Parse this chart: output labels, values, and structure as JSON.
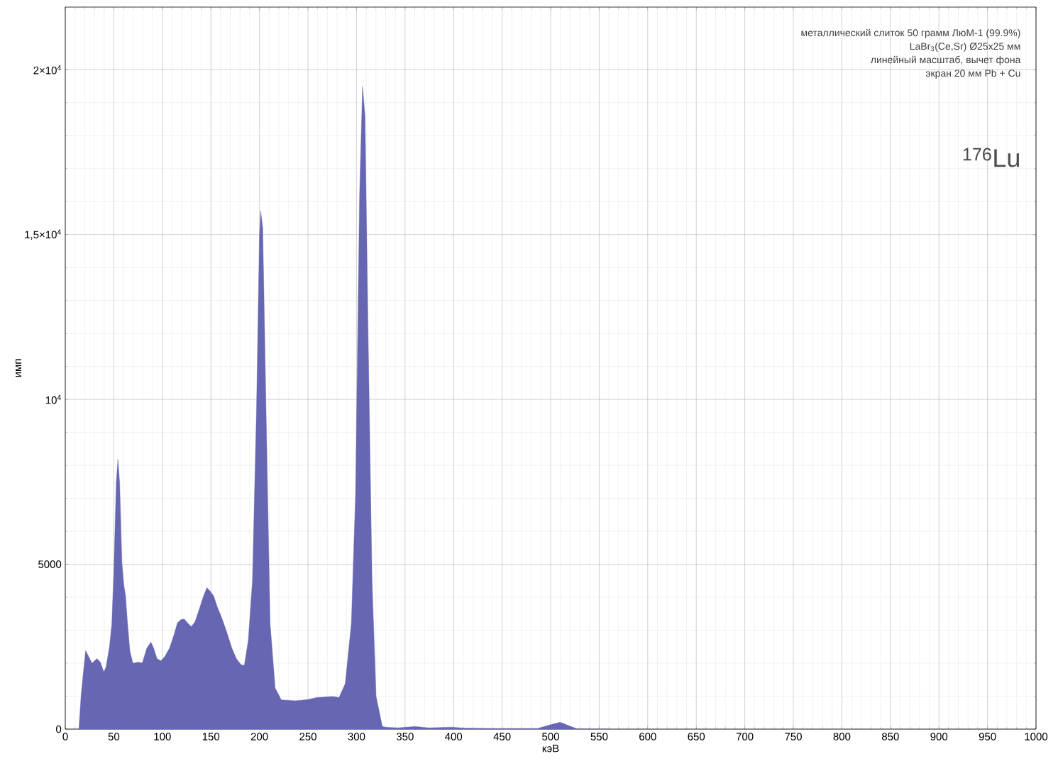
{
  "chart_data": {
    "type": "area",
    "xlabel": "кэВ",
    "ylabel": "имп",
    "xlim": [
      0,
      1000
    ],
    "ylim": [
      0,
      21900
    ],
    "xticks": [
      0,
      50,
      100,
      150,
      200,
      250,
      300,
      350,
      400,
      450,
      500,
      550,
      600,
      650,
      700,
      750,
      800,
      850,
      900,
      950,
      1000
    ],
    "yticks": [
      0,
      5000,
      {
        "value": 10000,
        "label": "10$^{4}$"
      },
      {
        "value": 15000,
        "label": "1,5×10$^{4}$"
      },
      {
        "value": 20000,
        "label": "2×10$^{4}$"
      }
    ],
    "grid": true,
    "marker": "none",
    "annotations": [
      "металлический слиток 50 грамм ЛюМ-1 (99.9%)",
      "LaBr$_{3}$(Ce,Sr) Ø25x25 мм",
      "линейный масштаб, вычет фона",
      "экран 20 мм Pb + Cu",
      "$^{176}$Lu"
    ],
    "series": [
      {
        "color": "#6666b3",
        "x": [
          14,
          16.3,
          18.7,
          21,
          23.3,
          27.5,
          32.7,
          36.2,
          39.7,
          42,
          45.5,
          47.9,
          50.2,
          52.5,
          54.2,
          56,
          58.4,
          60.2,
          62.1,
          64.2,
          66.5,
          69.6,
          74.7,
          79.4,
          84,
          88.2,
          91,
          94.5,
          98.5,
          102.7,
          107.4,
          112,
          115.5,
          119,
          122.5,
          126,
          129.8,
          133.5,
          137.7,
          142.4,
          145.9,
          149.4,
          152.9,
          156.4,
          161,
          165.7,
          171.6,
          176.2,
          180.9,
          184.4,
          188.5,
          192.8,
          197,
          200,
          201.3,
          203.4,
          206.8,
          211,
          216.2,
          222.5,
          237.4,
          250.1,
          258.7,
          275.6,
          282,
          288.4,
          294.7,
          299,
          303.2,
          306.2,
          308.8,
          311.8,
          316,
          320.2,
          326.6,
          330,
          342.2,
          360.4,
          374.4,
          397.8,
          411.8,
          439.8,
          486.5,
          500.5,
          509.8,
          519.1,
          527.3,
          560
        ],
        "values": [
          0,
          1030,
          1750,
          2380,
          2250,
          2000,
          2140,
          2030,
          1730,
          1890,
          2500,
          3180,
          4970,
          7480,
          8180,
          7480,
          5040,
          4400,
          4040,
          3180,
          2390,
          2000,
          2030,
          2010,
          2460,
          2640,
          2460,
          2140,
          2070,
          2210,
          2460,
          2860,
          3220,
          3320,
          3340,
          3220,
          3110,
          3250,
          3610,
          4040,
          4290,
          4180,
          4040,
          3720,
          3390,
          3000,
          2460,
          2140,
          1960,
          1930,
          2690,
          4510,
          9730,
          14940,
          15720,
          15200,
          9730,
          3210,
          1250,
          890,
          860,
          900,
          960,
          990,
          960,
          1380,
          3210,
          7120,
          16240,
          19500,
          18590,
          12330,
          4510,
          990,
          80,
          60,
          40,
          80,
          40,
          60,
          30,
          20,
          20,
          140,
          210,
          100,
          10,
          0
        ]
      }
    ]
  }
}
